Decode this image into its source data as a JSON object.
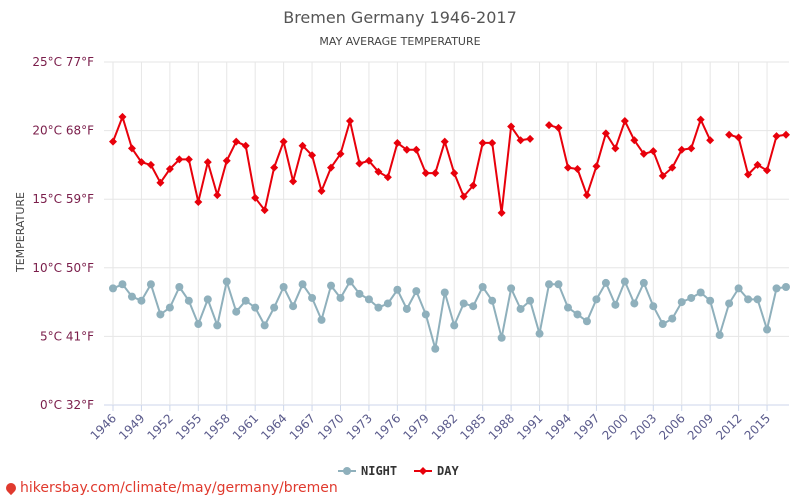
{
  "title": "Bremen Germany 1946-2017",
  "subtitle": "MAY AVERAGE TEMPERATURE",
  "watermark": "hikersbay.com/climate/may/germany/bremen",
  "colors": {
    "night": "#8fb0bc",
    "day": "#e8000b",
    "grid": "#e6e6e6",
    "axis": "#5b5b8c"
  },
  "chart_data": {
    "type": "line",
    "title": "Bremen Germany 1946-2017",
    "subtitle": "MAY AVERAGE TEMPERATURE",
    "ylabel": "TEMPERATURE",
    "ylim": [
      0,
      25
    ],
    "y_ticks": [
      {
        "value": 0,
        "label": "0°C 32°F"
      },
      {
        "value": 5,
        "label": "5°C 41°F"
      },
      {
        "value": 10,
        "label": "10°C 50°F"
      },
      {
        "value": 15,
        "label": "15°C 59°F"
      },
      {
        "value": 20,
        "label": "20°C 68°F"
      },
      {
        "value": 25,
        "label": "25°C 77°F"
      }
    ],
    "x_ticks": [
      1946,
      1949,
      1952,
      1955,
      1958,
      1961,
      1964,
      1967,
      1970,
      1973,
      1976,
      1979,
      1982,
      1985,
      1988,
      1991,
      1994,
      1997,
      2000,
      2003,
      2006,
      2009,
      2012,
      2015
    ],
    "x": [
      1946,
      1947,
      1948,
      1949,
      1950,
      1951,
      1952,
      1953,
      1954,
      1955,
      1956,
      1957,
      1958,
      1959,
      1960,
      1961,
      1962,
      1963,
      1964,
      1965,
      1966,
      1967,
      1968,
      1969,
      1970,
      1971,
      1972,
      1973,
      1974,
      1975,
      1976,
      1977,
      1978,
      1979,
      1980,
      1981,
      1982,
      1983,
      1984,
      1985,
      1986,
      1987,
      1988,
      1989,
      1990,
      1991,
      1992,
      1993,
      1994,
      1995,
      1996,
      1997,
      1998,
      1999,
      2000,
      2001,
      2002,
      2003,
      2004,
      2005,
      2006,
      2007,
      2008,
      2009,
      2010,
      2011,
      2012,
      2013,
      2014,
      2015,
      2016,
      2017
    ],
    "legend": "bottom-center",
    "grid": true,
    "series": [
      {
        "name": "NIGHT",
        "values": [
          8.5,
          8.8,
          7.9,
          7.6,
          8.8,
          6.6,
          7.1,
          8.6,
          7.6,
          5.9,
          7.7,
          5.8,
          9.0,
          6.8,
          7.6,
          7.1,
          5.8,
          7.1,
          8.6,
          7.2,
          8.8,
          7.8,
          6.2,
          8.7,
          7.8,
          9.0,
          8.1,
          7.7,
          7.1,
          7.4,
          8.4,
          7.0,
          8.3,
          6.6,
          4.1,
          8.2,
          5.8,
          7.4,
          7.2,
          8.6,
          7.6,
          4.9,
          8.5,
          7.0,
          7.6,
          5.2,
          8.8,
          8.8,
          7.1,
          6.6,
          6.1,
          7.7,
          8.9,
          7.3,
          9.0,
          7.4,
          8.9,
          7.2,
          5.9,
          6.3,
          7.5,
          7.8,
          8.2,
          7.6,
          5.1,
          7.4,
          8.5,
          7.7,
          7.7,
          5.5,
          8.5,
          8.6
        ]
      },
      {
        "name": "DAY",
        "values": [
          19.2,
          21.0,
          18.7,
          17.7,
          17.5,
          16.2,
          17.2,
          17.9,
          17.9,
          14.8,
          17.7,
          15.3,
          17.8,
          19.2,
          18.9,
          15.1,
          14.2,
          17.3,
          19.2,
          16.3,
          18.9,
          18.2,
          15.6,
          17.3,
          18.3,
          20.7,
          17.6,
          17.8,
          17.0,
          16.6,
          19.1,
          18.6,
          18.6,
          16.9,
          16.9,
          19.2,
          16.9,
          15.2,
          16.0,
          19.1,
          19.1,
          14.0,
          20.3,
          19.3,
          19.4,
          null,
          20.4,
          20.2,
          17.3,
          17.2,
          15.3,
          17.4,
          19.8,
          18.7,
          20.7,
          19.3,
          18.3,
          18.5,
          16.7,
          17.3,
          18.6,
          18.7,
          20.8,
          19.3,
          null,
          19.7,
          19.5,
          16.8,
          17.5,
          17.1,
          19.6,
          19.7
        ]
      }
    ]
  }
}
